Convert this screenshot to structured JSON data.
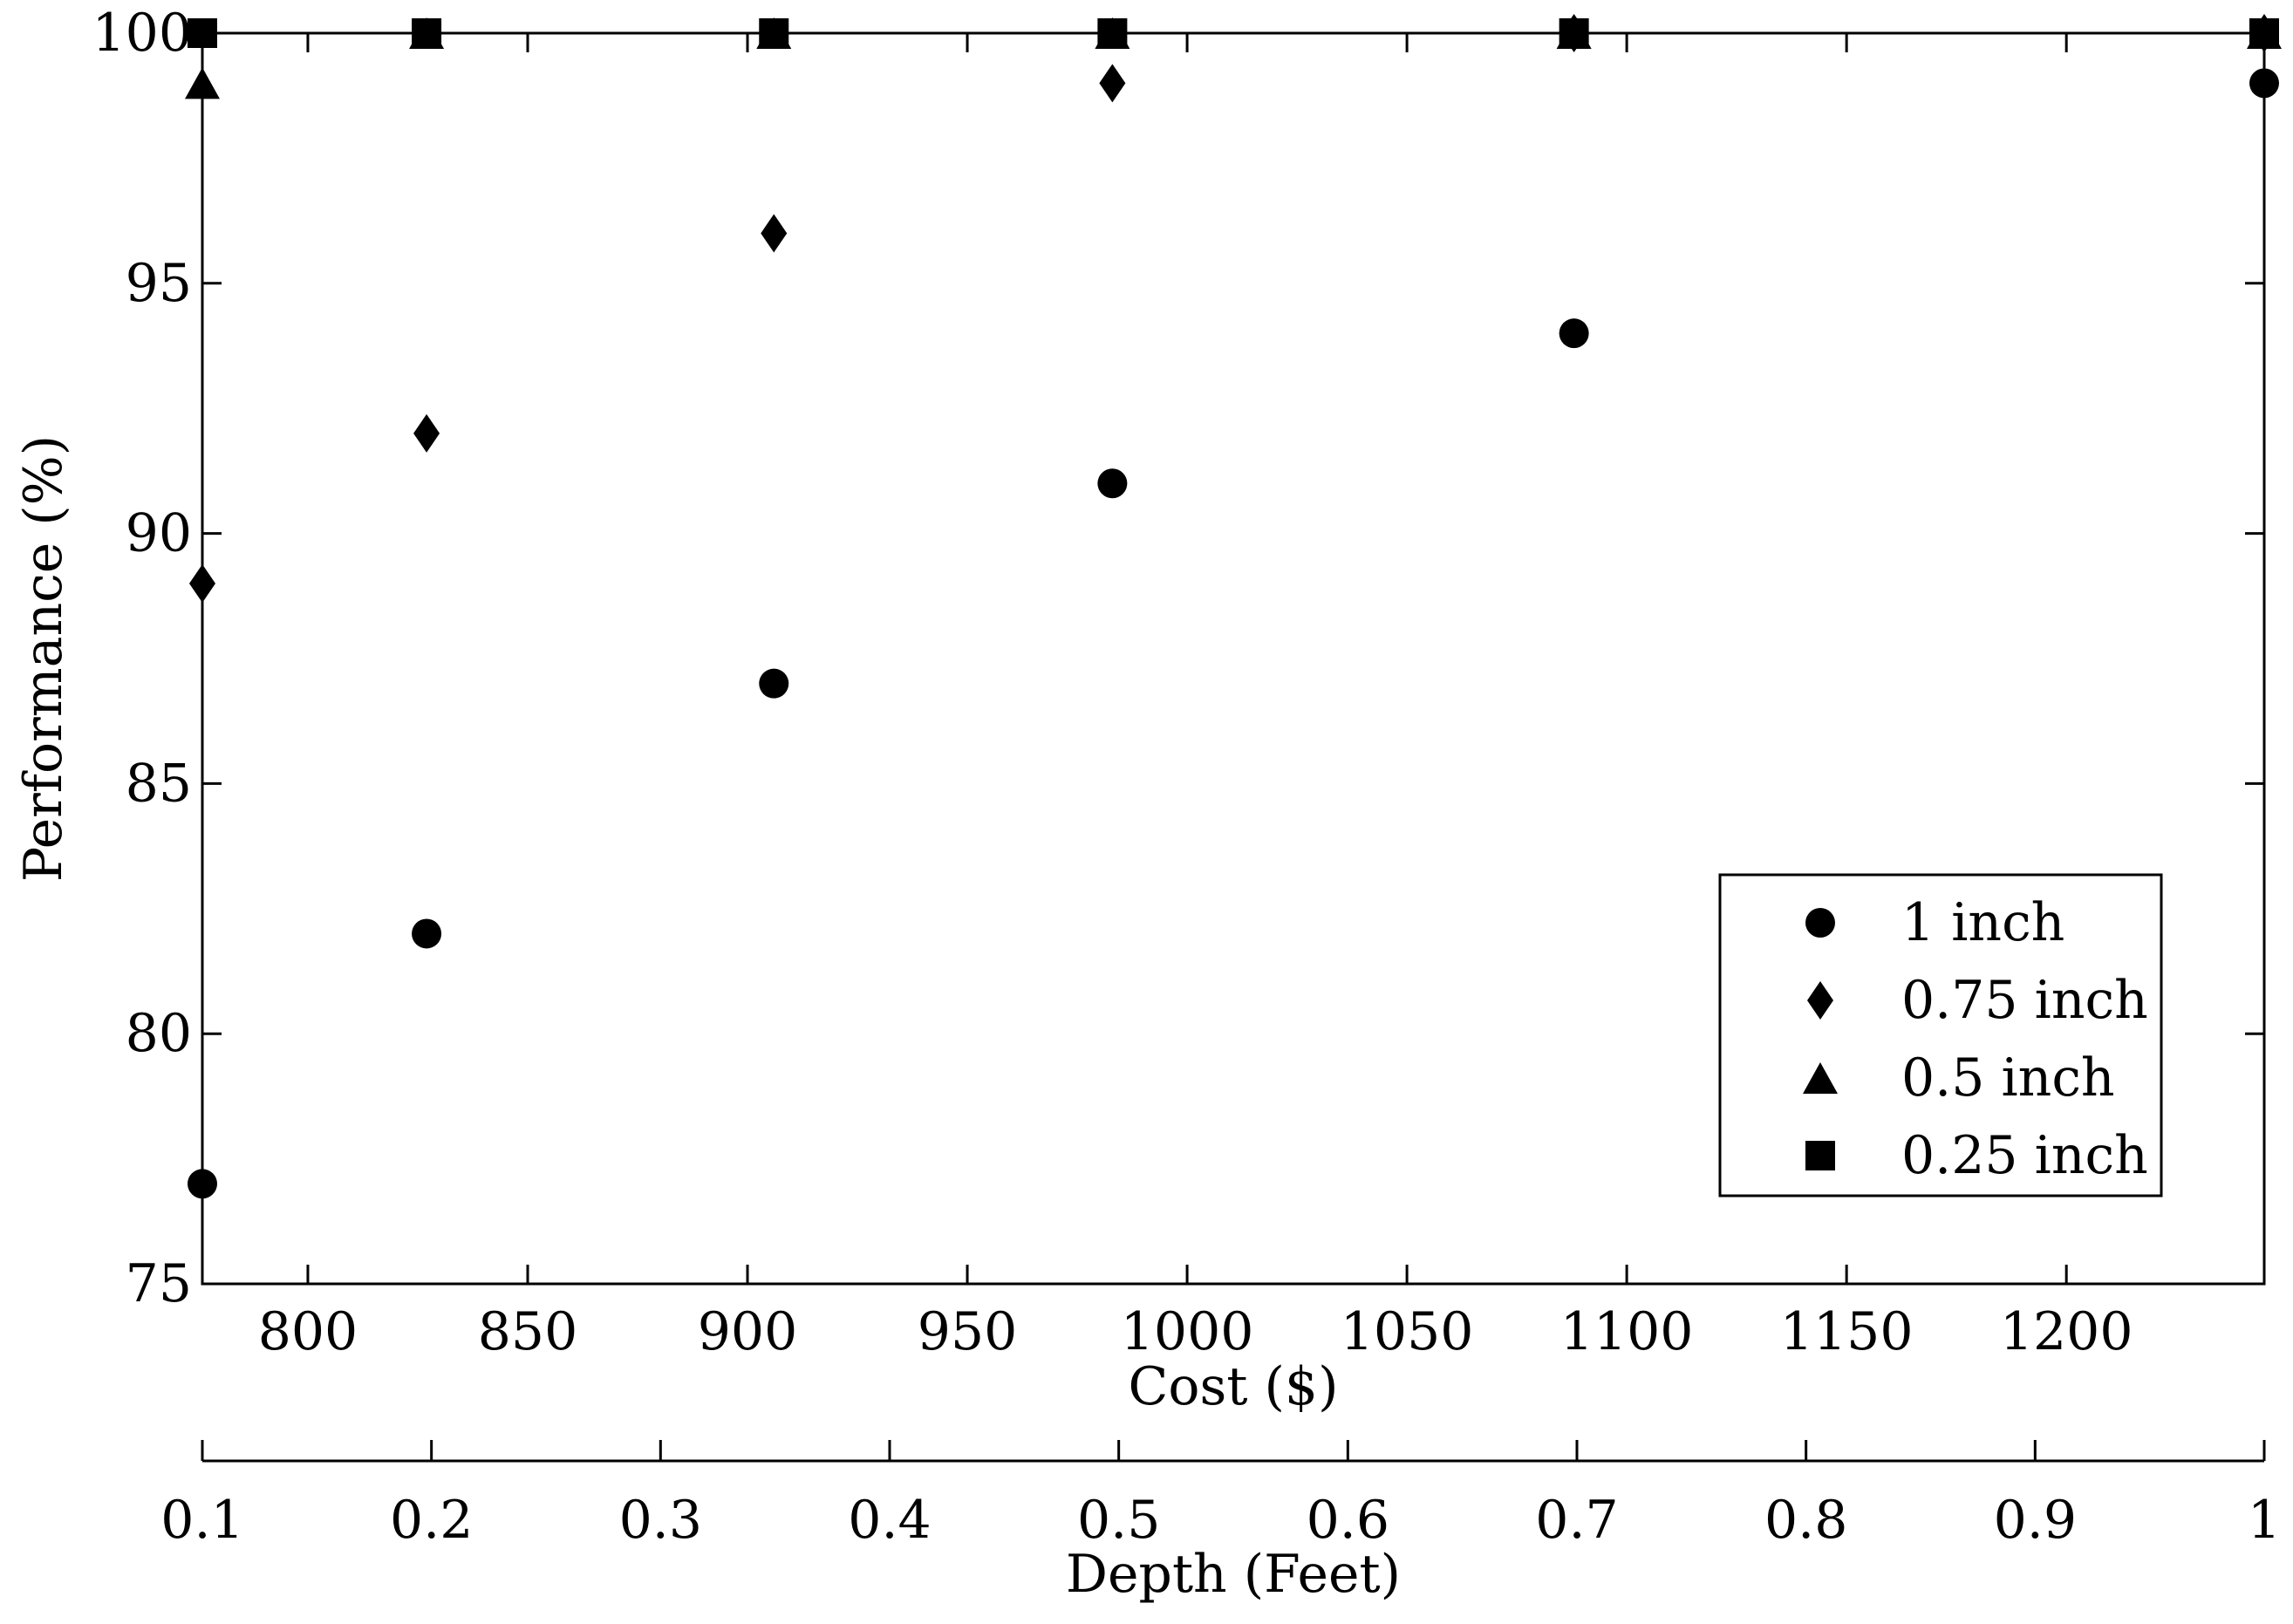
{
  "chart_data": {
    "type": "scatter",
    "xlabel": "Cost ($)",
    "ylabel": "Performance (%)",
    "xlim": [
      776,
      1245
    ],
    "ylim": [
      75,
      100
    ],
    "x_ticks": [
      800,
      850,
      900,
      950,
      1000,
      1050,
      1100,
      1150,
      1200
    ],
    "y_ticks": [
      75,
      80,
      85,
      90,
      95,
      100
    ],
    "secondary_x_axis": {
      "label": "Depth (Feet)",
      "lim": [
        0.1,
        1
      ],
      "ticks": [
        0.1,
        0.2,
        0.3,
        0.4,
        0.5,
        0.6,
        0.7,
        0.8,
        0.9,
        1
      ],
      "tick_labels": [
        "0.1",
        "0.2",
        "0.3",
        "0.4",
        "0.5",
        "0.6",
        "0.7",
        "0.8",
        "0.9",
        "1"
      ]
    },
    "legend_position": "lower-right",
    "grid": false,
    "series": [
      {
        "name": "1 inch",
        "marker": "circle",
        "x": [
          776,
          827,
          906,
          983,
          1088,
          1245
        ],
        "y": [
          77,
          82,
          87,
          91,
          94,
          99
        ]
      },
      {
        "name": "0.75 inch",
        "marker": "diamond",
        "x": [
          776,
          827,
          906,
          983,
          1088,
          1245
        ],
        "y": [
          89,
          92,
          96,
          99,
          100,
          100
        ]
      },
      {
        "name": "0.5 inch",
        "marker": "triangle",
        "x": [
          776,
          827,
          906,
          983,
          1088,
          1245
        ],
        "y": [
          99,
          100,
          100,
          100,
          100,
          100
        ]
      },
      {
        "name": "0.25 inch",
        "marker": "square",
        "x": [
          776,
          827,
          906,
          983,
          1088,
          1245
        ],
        "y": [
          100,
          100,
          100,
          100,
          100,
          100
        ]
      }
    ]
  }
}
